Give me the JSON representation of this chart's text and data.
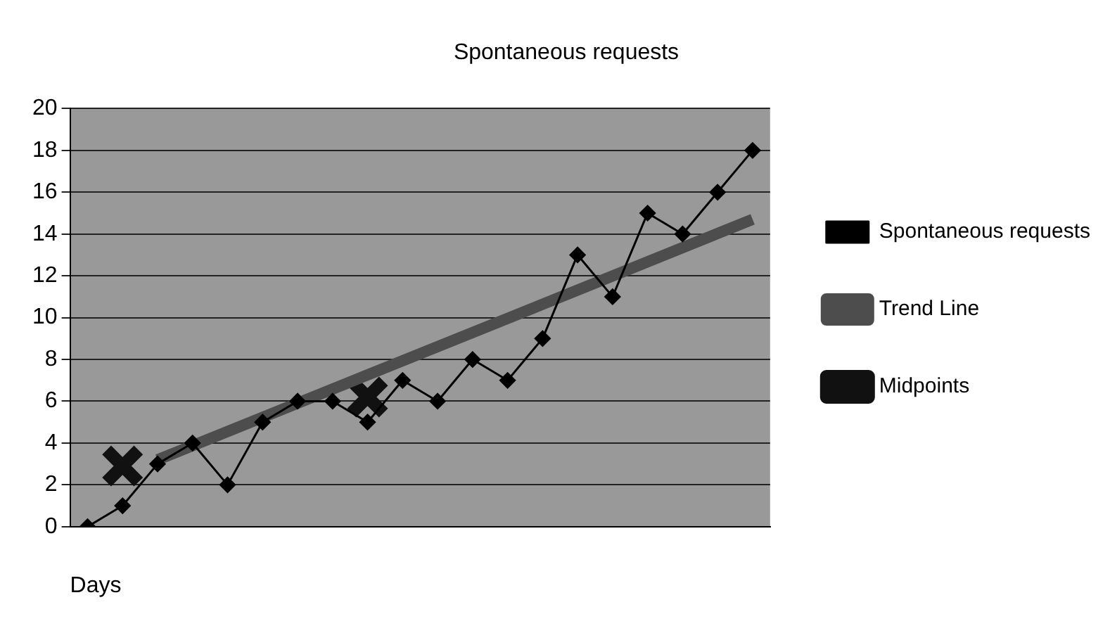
{
  "chart_data": {
    "type": "line",
    "title": "Spontaneous requests",
    "xlabel": "Days",
    "categories": [
      null,
      null,
      null,
      null,
      null,
      null,
      null,
      null,
      null,
      null,
      null,
      null,
      null,
      null,
      null,
      null,
      null,
      null,
      null,
      null
    ],
    "series": [
      {
        "name": "Trend Line",
        "type": "line",
        "color": "#4d4d4d",
        "values": [
          null,
          null,
          3.2,
          null,
          null,
          null,
          null,
          null,
          null,
          null,
          null,
          null,
          null,
          null,
          null,
          null,
          null,
          null,
          null,
          14.7
        ]
      },
      {
        "name": "Spontaneous requests",
        "type": "line",
        "color": "#000000",
        "marker": "diamond",
        "values": [
          0,
          1,
          3,
          4,
          2,
          5,
          6,
          6,
          5,
          7,
          6,
          8,
          7,
          9,
          13,
          11,
          15,
          14,
          16,
          18
        ]
      },
      {
        "name": "Midpoints",
        "type": "scatter",
        "color": "#111111",
        "marker": "cross",
        "values": [
          null,
          2.9,
          null,
          null,
          null,
          null,
          null,
          null,
          6.2,
          null,
          null,
          null,
          null,
          null,
          null,
          null,
          null,
          null,
          null,
          null
        ]
      }
    ],
    "ylim": [
      0,
      20
    ],
    "yticks": [
      0,
      2,
      4,
      6,
      8,
      10,
      12,
      14,
      16,
      18,
      20
    ],
    "grid": "y",
    "legend": "right"
  }
}
